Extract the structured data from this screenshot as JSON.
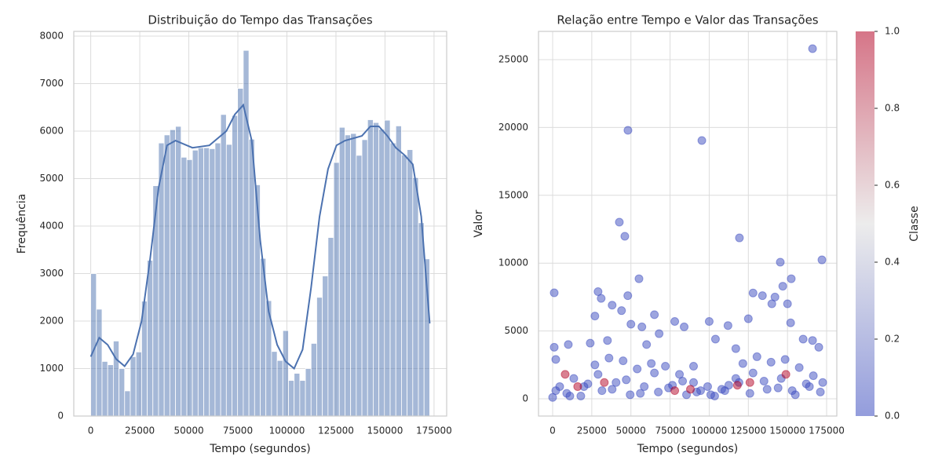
{
  "chart_data": [
    {
      "type": "histogram",
      "title": "Distribuição do Tempo das Transações",
      "xlabel": "Tempo (segundos)",
      "ylabel": "Frequência",
      "color": "#4c72b0",
      "grid": true,
      "bins": [
        0,
        2880,
        5760,
        8640,
        11520,
        14400,
        17280,
        20160,
        23040,
        25920,
        28800,
        31680,
        34560,
        37440,
        40320,
        43200,
        46080,
        48960,
        51840,
        54720,
        57600,
        60480,
        63360,
        66240,
        69120,
        72000,
        74880,
        77760,
        80640,
        83520,
        86400,
        89280,
        92160,
        95040,
        97920,
        100800,
        103680,
        106560,
        109440,
        112320,
        115200,
        118080,
        120960,
        123840,
        126720,
        129600,
        132480,
        135360,
        138240,
        141120,
        144000,
        146880,
        149760,
        152640,
        155520,
        158400,
        161280,
        164160,
        167040,
        169920,
        172800
      ],
      "values": [
        3000,
        2250,
        1150,
        1080,
        1580,
        1000,
        530,
        1250,
        1350,
        2420,
        3280,
        4850,
        5750,
        5920,
        6030,
        6100,
        5450,
        5400,
        5600,
        5650,
        5650,
        5630,
        5750,
        6350,
        5720,
        6330,
        6900,
        7700,
        5830,
        4870,
        3320,
        2430,
        1360,
        1170,
        1800,
        750,
        900,
        750,
        1000,
        1530,
        2500,
        2950,
        3760,
        5340,
        6080,
        5920,
        5950,
        5490,
        5820,
        6240,
        6180,
        6040,
        6230,
        5750,
        6110,
        5500,
        5610,
        5020,
        4070,
        3310
      ],
      "kde": {
        "x": [
          0,
          4320,
          8640,
          12960,
          17280,
          21600,
          25920,
          30240,
          34560,
          38880,
          43200,
          51840,
          60480,
          69120,
          73440,
          77760,
          82080,
          86400,
          90720,
          95040,
          99360,
          103680,
          108000,
          112320,
          116640,
          120960,
          125280,
          129600,
          138240,
          142560,
          146880,
          151200,
          155520,
          159840,
          164160,
          168480,
          172800
        ],
        "values": [
          1250,
          1650,
          1500,
          1200,
          1050,
          1300,
          2000,
          3300,
          4800,
          5700,
          5800,
          5650,
          5700,
          6000,
          6350,
          6550,
          5800,
          3700,
          2200,
          1500,
          1150,
          1000,
          1400,
          2700,
          4200,
          5200,
          5700,
          5800,
          5900,
          6100,
          6100,
          5900,
          5650,
          5500,
          5300,
          4200,
          1950
        ]
      },
      "xlim": [
        -8640,
        181440
      ],
      "xticks": [
        0,
        25000,
        50000,
        75000,
        100000,
        125000,
        150000,
        175000
      ],
      "ylim": [
        0,
        8100
      ],
      "yticks": [
        0,
        1000,
        2000,
        3000,
        4000,
        5000,
        6000,
        7000,
        8000
      ]
    },
    {
      "type": "scatter",
      "title": "Relação entre Tempo e Valor das Transações",
      "xlabel": "Tempo (segundos)",
      "ylabel": "Valor",
      "grid": true,
      "x": [
        0,
        4500,
        9000,
        13500,
        18000,
        22500,
        27000,
        31500,
        36000,
        40500,
        45000,
        49500,
        54000,
        58500,
        63000,
        67500,
        72000,
        76500,
        81000,
        85500,
        90000,
        94500,
        99000,
        103500,
        108000,
        112500,
        117000,
        121500,
        126000,
        130500,
        135000,
        139500,
        144000,
        148500,
        153000,
        157500,
        162000,
        166500,
        171000,
        2000,
        11000,
        20000,
        29000,
        38000,
        47000,
        56000,
        65000,
        74000,
        83000,
        92000,
        101000,
        110000,
        119000,
        128000,
        137000,
        146000,
        155000,
        164000,
        172500,
        2000,
        1000,
        10000,
        27000,
        29000,
        31000,
        38000,
        44000,
        48000,
        50000,
        57000,
        65000,
        68000,
        78000,
        84000,
        100000,
        104000,
        112000,
        125000,
        128000,
        134000,
        140000,
        142000,
        147000,
        150000,
        152000,
        160000,
        166000,
        170000,
        24000,
        35000,
        60000,
        90000,
        117000,
        1000,
        48100,
        95300,
        166000,
        42600,
        46100,
        119300,
        172000,
        145400,
        55150,
        152400,
        8000,
        16000,
        33000,
        78000,
        88000,
        118000,
        126000,
        149000
      ],
      "values": [
        100,
        900,
        400,
        1500,
        200,
        1100,
        2500,
        600,
        3000,
        1200,
        2800,
        300,
        2200,
        900,
        2600,
        500,
        2400,
        1000,
        1800,
        300,
        1200,
        600,
        900,
        200,
        700,
        1000,
        1500,
        2600,
        400,
        3100,
        1300,
        2700,
        800,
        2900,
        600,
        2300,
        1100,
        1700,
        500,
        600,
        200,
        900,
        1800,
        700,
        1400,
        400,
        1900,
        800,
        1300,
        500,
        300,
        600,
        1200,
        1900,
        700,
        1500,
        300,
        900,
        1200,
        2900,
        3800,
        4000,
        6100,
        7900,
        7400,
        6900,
        6500,
        7600,
        5500,
        5300,
        6200,
        4800,
        5700,
        5300,
        5700,
        4400,
        5400,
        5900,
        7800,
        7600,
        7000,
        7500,
        8300,
        7000,
        5600,
        4400,
        4300,
        3800,
        4100,
        4300,
        4000,
        2400,
        3700,
        7810,
        19790,
        19040,
        25810,
        13020,
        11980,
        11860,
        10240,
        10070,
        8850,
        8850,
        1800,
        900,
        1200,
        600,
        700,
        1000,
        1200,
        1800
      ],
      "c": [
        0,
        0,
        0,
        0,
        0,
        0,
        0,
        0,
        0,
        0,
        0,
        0,
        0,
        0,
        0,
        0,
        0,
        0,
        0,
        0,
        0,
        0,
        0,
        0,
        0,
        0,
        0,
        0,
        0,
        0,
        0,
        0,
        0,
        0,
        0,
        0,
        0,
        0,
        0,
        0,
        0,
        0,
        0,
        0,
        0,
        0,
        0,
        0,
        0,
        0,
        0,
        0,
        0,
        0,
        0,
        0,
        0,
        0,
        0,
        0,
        0,
        0,
        0,
        0,
        0,
        0,
        0,
        0,
        0,
        0,
        0,
        0,
        0,
        0,
        0,
        0,
        0,
        0,
        0,
        0,
        0,
        0,
        0,
        0,
        0,
        0,
        0,
        0,
        0,
        0,
        0,
        0,
        0,
        0,
        0,
        0,
        0,
        0,
        0,
        0,
        0,
        0,
        0,
        0,
        1,
        1,
        1,
        1,
        1,
        1,
        1,
        1
      ],
      "xlim": [
        -9026,
        181500
      ],
      "xticks": [
        0,
        25000,
        50000,
        75000,
        100000,
        125000,
        150000,
        175000
      ],
      "ylim": [
        -1273,
        27083
      ],
      "yticks": [
        0,
        5000,
        10000,
        15000,
        20000,
        25000
      ],
      "colorbar": {
        "label": "Classe",
        "lim": [
          0,
          1
        ],
        "colors": [
          "#3b4cc0",
          "#dddcdc",
          "#b40426"
        ],
        "ticks": [
          {
            "value": 0,
            "label": "0.0"
          },
          0.2,
          0.4,
          0.6,
          0.8,
          {
            "value": 1,
            "label": "1.0"
          }
        ]
      }
    }
  ]
}
